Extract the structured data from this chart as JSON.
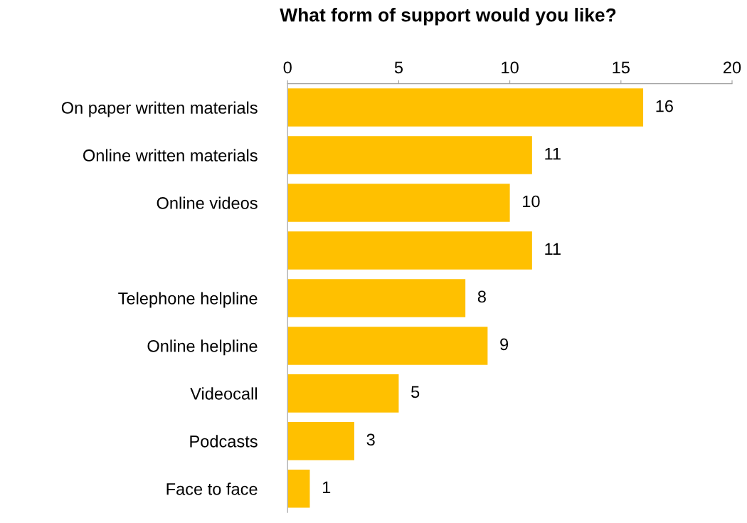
{
  "chart_data": {
    "type": "bar",
    "orientation": "horizontal",
    "title": "What form of support would you like?",
    "categories": [
      "On paper written materials",
      "Online written materials",
      "Online videos",
      null,
      "Telephone helpline",
      "Online helpline",
      "Videocall",
      "Podcasts",
      "Face to face"
    ],
    "values": [
      16,
      11,
      10,
      11,
      8,
      9,
      5,
      3,
      1
    ],
    "color": "#ffc000",
    "xlim": [
      0,
      20
    ],
    "xticks": [
      0,
      5,
      10,
      15,
      20
    ],
    "data_labels": true,
    "grid": false,
    "legend": false
  }
}
